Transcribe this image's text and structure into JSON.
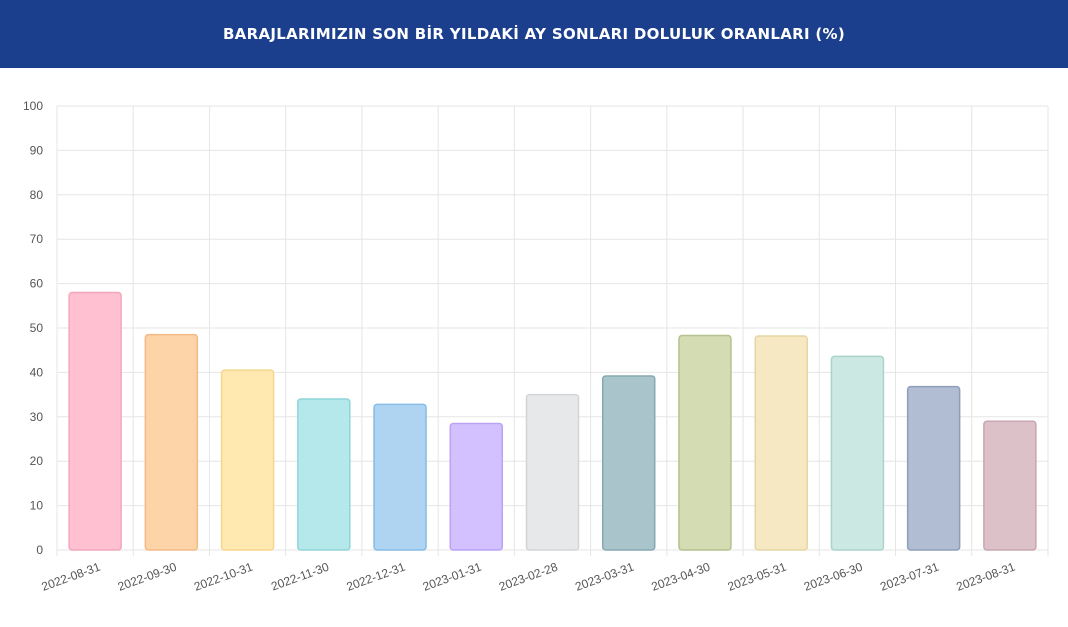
{
  "header": {
    "title": "BARAJLARIMIZIN SON BİR YILDAKİ AY SONLARI DOLULUK ORANLARI (%)"
  },
  "colors": {
    "header_bg": "#1b3f8c",
    "grid": "#e6e6e6",
    "tick_text": "#555555"
  },
  "chart_data": {
    "type": "bar",
    "title": "BARAJLARIMIZIN SON BİR YILDAKİ AY SONLARI DOLULUK ORANLARI (%)",
    "xlabel": "",
    "ylabel": "",
    "ylim": [
      0,
      100
    ],
    "yticks": [
      0,
      10,
      20,
      30,
      40,
      50,
      60,
      70,
      80,
      90,
      100
    ],
    "grid": true,
    "legend": "none",
    "categories": [
      "2022-08-31",
      "2022-09-30",
      "2022-10-31",
      "2022-11-30",
      "2022-12-31",
      "2023-01-31",
      "2023-02-28",
      "2023-03-31",
      "2023-04-30",
      "2023-05-31",
      "2023-06-30",
      "2023-07-31",
      "2023-08-31"
    ],
    "values": [
      58,
      48.5,
      40.5,
      34,
      32.8,
      28.5,
      35,
      39.2,
      48.3,
      48.2,
      43.6,
      36.8,
      29
    ],
    "fill_colors": [
      "#ffc0d2",
      "#fdd3a8",
      "#ffe9b0",
      "#b5e8ea",
      "#aed4f2",
      "#d3c1ff",
      "#e7e8ea",
      "#a9c5cb",
      "#d3dcb2",
      "#f6e8c2",
      "#cce8e2",
      "#b0bdd3",
      "#ddc1c9"
    ],
    "stroke_colors": [
      "#f4a6bd",
      "#f2bb86",
      "#f5d68c",
      "#8fd6d9",
      "#86bce6",
      "#b9a3f2",
      "#d2d4d8",
      "#86a9b1",
      "#b4c290",
      "#e6d5a3",
      "#a9d4ca",
      "#8e9eb9",
      "#c9a6b0"
    ]
  }
}
